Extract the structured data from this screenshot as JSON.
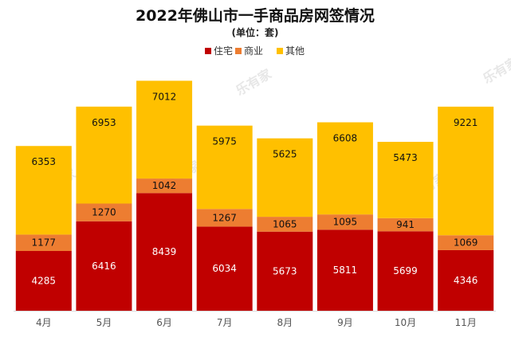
{
  "chart_data": {
    "type": "bar",
    "stacked": true,
    "title": "2022年佛山市一手商品房网签情况",
    "subtitle": "(单位：套)",
    "categories": [
      "4月",
      "5月",
      "6月",
      "7月",
      "8月",
      "9月",
      "10月",
      "11月"
    ],
    "series": [
      {
        "name": "住宅",
        "color": "#c00000",
        "values": [
          4285,
          6416,
          8439,
          6034,
          5673,
          5811,
          5699,
          4346
        ]
      },
      {
        "name": "商业",
        "color": "#ed7d31",
        "values": [
          1177,
          1270,
          1042,
          1267,
          1065,
          1095,
          941,
          1069
        ]
      },
      {
        "name": "其他",
        "color": "#ffc000",
        "values": [
          6353,
          6953,
          7012,
          5975,
          5625,
          6608,
          5473,
          9221
        ]
      }
    ],
    "ylim": [
      0,
      18000
    ],
    "grid": false,
    "legend_position": "top-center"
  },
  "watermark": "乐有家"
}
